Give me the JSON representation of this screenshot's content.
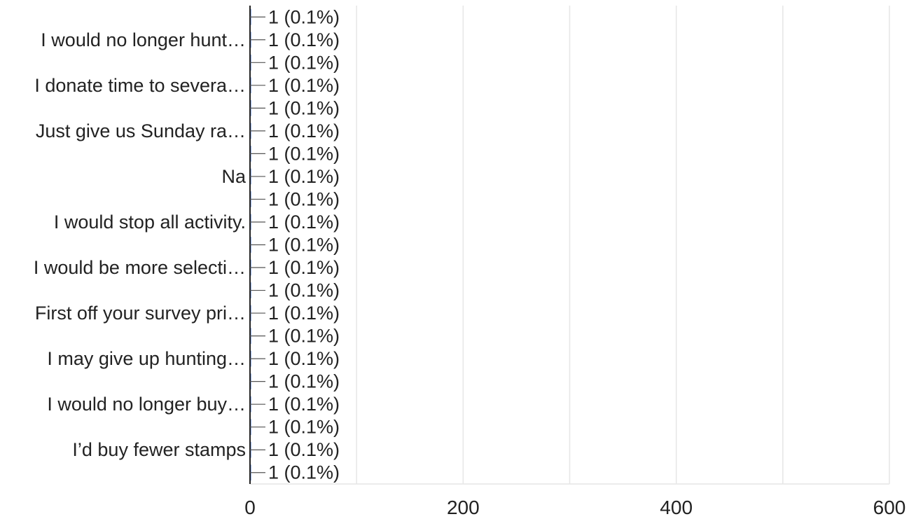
{
  "chart_data": {
    "type": "bar",
    "orientation": "horizontal",
    "title": "",
    "xlabel": "",
    "ylabel": "",
    "xlim": [
      0,
      600
    ],
    "x_ticks": [
      0,
      200,
      400,
      600
    ],
    "x_tick_labels": [
      "0",
      "200",
      "400",
      "600"
    ],
    "grid": true,
    "legend": "none",
    "colors": {
      "axis": "#222222",
      "grid": "#e6e6e6",
      "text": "#222222",
      "bar": "#3366cc"
    },
    "categories": [
      "",
      "I would no longer hunt…",
      "",
      "I donate time to severa…",
      "",
      "Just give us Sunday ra…",
      "",
      "Na",
      "",
      "I would stop all activity.",
      "",
      "I would be more selecti…",
      "",
      "First off your survey pri…",
      "",
      "I may give up hunting…",
      "",
      "I would no longer buy…",
      "",
      "I’d buy fewer stamps",
      ""
    ],
    "values": [
      1,
      1,
      1,
      1,
      1,
      1,
      1,
      1,
      1,
      1,
      1,
      1,
      1,
      1,
      1,
      1,
      1,
      1,
      1,
      1,
      1
    ],
    "data_labels": [
      "1 (0.1%)",
      "1 (0.1%)",
      "1 (0.1%)",
      "1 (0.1%)",
      "1 (0.1%)",
      "1 (0.1%)",
      "1 (0.1%)",
      "1 (0.1%)",
      "1 (0.1%)",
      "1 (0.1%)",
      "1 (0.1%)",
      "1 (0.1%)",
      "1 (0.1%)",
      "1 (0.1%)",
      "1 (0.1%)",
      "1 (0.1%)",
      "1 (0.1%)",
      "1 (0.1%)",
      "1 (0.1%)",
      "1 (0.1%)",
      "1 (0.1%)"
    ]
  }
}
